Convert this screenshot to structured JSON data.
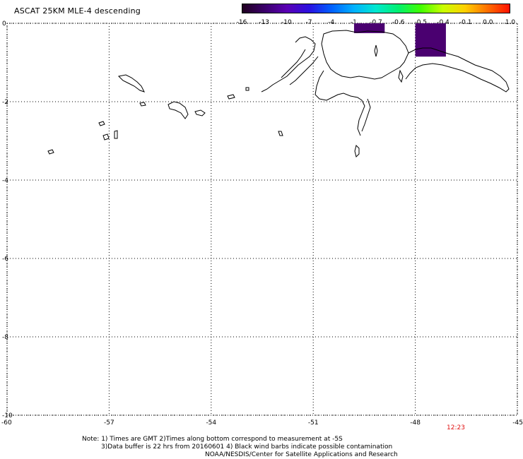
{
  "title": "ASCAT 25KM MLE-4 descending",
  "colorbar": {
    "ticks": [
      "-16",
      "-13",
      "-10",
      "-7",
      "-4",
      "-1",
      "-0.7",
      "-0.6",
      "-0.5",
      "-0.4",
      "-0.1",
      "0.0",
      "1.0"
    ],
    "colors": [
      "#200020",
      "#3a006a",
      "#5a00b4",
      "#2a10e0",
      "#0060ff",
      "#00b0ff",
      "#00e8d0",
      "#00f070",
      "#40ff00",
      "#c8ff00",
      "#ffd000",
      "#ff7000",
      "#ff1000"
    ]
  },
  "axes": {
    "x_ticks": [
      "-60",
      "-57",
      "-54",
      "-51",
      "-48",
      "-45"
    ],
    "y_ticks": [
      "0",
      "-2",
      "-4",
      "-6",
      "-8",
      "-10"
    ],
    "grid": "dotted"
  },
  "time_label": "12:23",
  "notes": {
    "line1": "Note: 1) Times are GMT 2)Times along bottom correspond to measurement at -5S",
    "line2": "3)Data buffer is 22 hrs from 20160601 4) Black wind barbs indicate possible contamination",
    "line3": "NOAA/NESDIS/Center for Satellite Applications and Research"
  },
  "data_patches": [
    {
      "lon_min": -49.8,
      "lon_max": -48.9,
      "lat_min": -0.25,
      "lat_max": 0.0,
      "color": "#4a0070"
    },
    {
      "lon_min": -48.0,
      "lon_max": -47.1,
      "lat_min": -0.85,
      "lat_max": 0.0,
      "color": "#4a0070"
    }
  ]
}
